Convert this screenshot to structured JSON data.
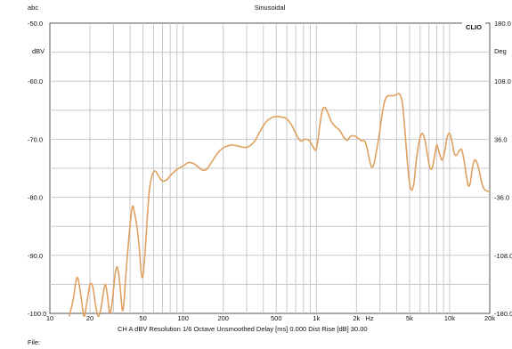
{
  "header": {
    "top_left": "abc",
    "title": "Sinusoidal",
    "brand": "CLIO"
  },
  "footer": {
    "status_line": "CH A   dBV   Resolution 1/6 Octave   Unsmoothed   Delay [ms] 0.000   Dist Rise [dB] 30.00",
    "file_label": "File:"
  },
  "chart_data": {
    "type": "line",
    "title": "Sinusoidal",
    "x_scale": "log",
    "xlim": [
      10,
      20000
    ],
    "x_unit_label": "Hz",
    "x_ticks": [
      10,
      20,
      50,
      100,
      200,
      500,
      1000,
      2000,
      5000,
      10000,
      20000
    ],
    "x_tick_labels": [
      "10",
      "20",
      "50",
      "100",
      "200",
      "500",
      "1k",
      "2k",
      "5k",
      "10k",
      "20k"
    ],
    "y_left": {
      "unit": "dBV",
      "ylim": [
        -100,
        -50
      ],
      "ticks": [
        -50,
        -60,
        -70,
        -80,
        -90,
        -100
      ],
      "tick_labels": [
        "-50.0",
        "-60.0",
        "-70.0",
        "-80.0",
        "-90.0",
        "-100.0"
      ]
    },
    "y_right": {
      "unit": "Deg",
      "ylim": [
        -180,
        180
      ],
      "ticks": [
        180,
        108,
        36,
        -36,
        -108,
        -180
      ],
      "tick_labels": [
        "180.0",
        "108.0",
        "36.0",
        "-36.0",
        "-108.0",
        "-180.0"
      ]
    },
    "grid": true,
    "colors": {
      "curve": "#e0a060",
      "grid": "#c8c8c8",
      "axis": "#555555"
    },
    "series": [
      {
        "points": [
          [
            14,
            -100.5
          ],
          [
            15,
            -97.5
          ],
          [
            16,
            -93.8
          ],
          [
            17,
            -96.5
          ],
          [
            18,
            -100.5
          ],
          [
            19,
            -98.0
          ],
          [
            20,
            -95.0
          ],
          [
            21,
            -95.5
          ],
          [
            22,
            -98.5
          ],
          [
            23,
            -100.5
          ],
          [
            24,
            -99.5
          ],
          [
            25,
            -97.0
          ],
          [
            26,
            -95.0
          ],
          [
            27,
            -96.8
          ],
          [
            28,
            -99.8
          ],
          [
            29,
            -99.0
          ],
          [
            30,
            -96.0
          ],
          [
            31,
            -93.0
          ],
          [
            32,
            -92.0
          ],
          [
            33,
            -93.5
          ],
          [
            34,
            -96.5
          ],
          [
            35,
            -99.5
          ],
          [
            36,
            -98.0
          ],
          [
            37,
            -94.0
          ],
          [
            39,
            -87.5
          ],
          [
            41,
            -82.5
          ],
          [
            42,
            -81.5
          ],
          [
            43,
            -82.5
          ],
          [
            45,
            -85.0
          ],
          [
            47,
            -89.0
          ],
          [
            48.5,
            -93.0
          ],
          [
            50,
            -93.5
          ],
          [
            52,
            -89.0
          ],
          [
            54,
            -83.0
          ],
          [
            56,
            -78.5
          ],
          [
            59,
            -76.0
          ],
          [
            62,
            -75.5
          ],
          [
            66,
            -76.5
          ],
          [
            70,
            -77.2
          ],
          [
            75,
            -77.0
          ],
          [
            80,
            -76.3
          ],
          [
            90,
            -75.2
          ],
          [
            100,
            -74.6
          ],
          [
            110,
            -74.0
          ],
          [
            120,
            -74.2
          ],
          [
            130,
            -74.8
          ],
          [
            140,
            -75.3
          ],
          [
            150,
            -75.2
          ],
          [
            160,
            -74.3
          ],
          [
            180,
            -72.5
          ],
          [
            200,
            -71.5
          ],
          [
            230,
            -71.0
          ],
          [
            260,
            -71.2
          ],
          [
            300,
            -71.4
          ],
          [
            340,
            -70.5
          ],
          [
            380,
            -68.5
          ],
          [
            420,
            -67.0
          ],
          [
            460,
            -66.3
          ],
          [
            500,
            -66.1
          ],
          [
            550,
            -66.2
          ],
          [
            600,
            -66.5
          ],
          [
            650,
            -67.5
          ],
          [
            700,
            -69.0
          ],
          [
            760,
            -70.3
          ],
          [
            820,
            -70.0
          ],
          [
            880,
            -70.2
          ],
          [
            930,
            -71.0
          ],
          [
            980,
            -71.9
          ],
          [
            1000,
            -71.6
          ],
          [
            1030,
            -70.0
          ],
          [
            1070,
            -67.0
          ],
          [
            1110,
            -65.0
          ],
          [
            1160,
            -64.5
          ],
          [
            1220,
            -65.5
          ],
          [
            1300,
            -67.0
          ],
          [
            1400,
            -67.9
          ],
          [
            1500,
            -68.5
          ],
          [
            1600,
            -69.6
          ],
          [
            1700,
            -70.2
          ],
          [
            1800,
            -69.5
          ],
          [
            1900,
            -69.4
          ],
          [
            2000,
            -69.6
          ],
          [
            2100,
            -70.0
          ],
          [
            2200,
            -70.3
          ],
          [
            2300,
            -70.3
          ],
          [
            2400,
            -71.5
          ],
          [
            2500,
            -73.5
          ],
          [
            2600,
            -74.8
          ],
          [
            2700,
            -74.3
          ],
          [
            2800,
            -72.5
          ],
          [
            2950,
            -69.5
          ],
          [
            3100,
            -66.0
          ],
          [
            3250,
            -63.5
          ],
          [
            3400,
            -62.6
          ],
          [
            3600,
            -62.5
          ],
          [
            3800,
            -62.5
          ],
          [
            4000,
            -62.3
          ],
          [
            4200,
            -62.2
          ],
          [
            4400,
            -63.5
          ],
          [
            4600,
            -68.0
          ],
          [
            4800,
            -73.5
          ],
          [
            5000,
            -77.5
          ],
          [
            5200,
            -78.8
          ],
          [
            5400,
            -77.5
          ],
          [
            5600,
            -74.0
          ],
          [
            5900,
            -70.5
          ],
          [
            6200,
            -69.0
          ],
          [
            6500,
            -70.0
          ],
          [
            6800,
            -72.5
          ],
          [
            7100,
            -74.8
          ],
          [
            7400,
            -75.0
          ],
          [
            7700,
            -73.0
          ],
          [
            8000,
            -71.0
          ],
          [
            8400,
            -72.5
          ],
          [
            8800,
            -73.6
          ],
          [
            9200,
            -72.0
          ],
          [
            9600,
            -69.6
          ],
          [
            10000,
            -69.0
          ],
          [
            10400,
            -70.3
          ],
          [
            10800,
            -72.3
          ],
          [
            11200,
            -72.8
          ],
          [
            11800,
            -72.0
          ],
          [
            12300,
            -71.8
          ],
          [
            12800,
            -73.5
          ],
          [
            13300,
            -76.0
          ],
          [
            13800,
            -78.0
          ],
          [
            14300,
            -77.5
          ],
          [
            14800,
            -75.0
          ],
          [
            15400,
            -73.6
          ],
          [
            16000,
            -74.0
          ],
          [
            16700,
            -75.5
          ],
          [
            17400,
            -77.5
          ],
          [
            18200,
            -78.6
          ],
          [
            19000,
            -78.9
          ],
          [
            20000,
            -79.0
          ]
        ]
      }
    ]
  }
}
